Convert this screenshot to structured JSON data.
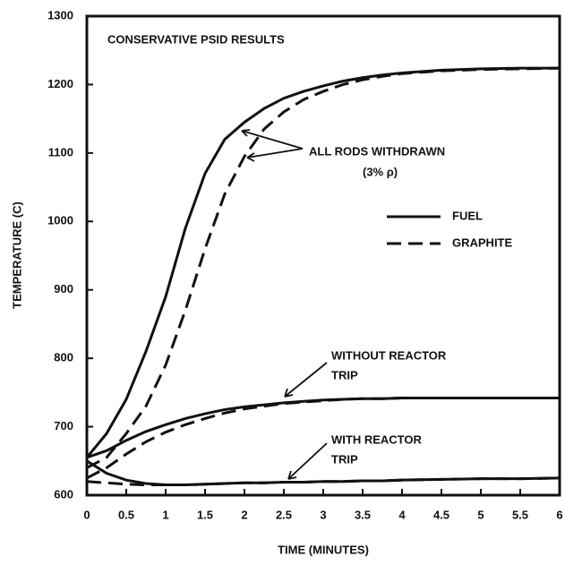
{
  "chart_data": {
    "type": "line",
    "title": "CONSERVATIVE PSID RESULTS",
    "x_label": "TIME (MINUTES)",
    "y_label": "TEMPERATURE (C)",
    "annotations": [
      "ALL RODS WITHDRAWN",
      "(3% ρ)",
      "WITHOUT REACTOR",
      "TRIP",
      "WITH REACTOR",
      "TRIP"
    ],
    "x": [
      0,
      0.25,
      0.5,
      0.75,
      1,
      1.25,
      1.5,
      1.75,
      2,
      2.25,
      2.5,
      2.75,
      3,
      3.25,
      3.5,
      3.75,
      4,
      4.5,
      5,
      5.5,
      6
    ],
    "series": [
      {
        "name": "FUEL",
        "color": "#111111",
        "dashed": false,
        "values": [
          655,
          690,
          740,
          810,
          890,
          990,
          1070,
          1120,
          1145,
          1165,
          1180,
          1190,
          1198,
          1205,
          1210,
          1214,
          1217,
          1221,
          1223,
          1224,
          1224
        ]
      },
      {
        "name": "GRAPHITE",
        "color": "#111111",
        "dashed": true,
        "values": [
          640,
          655,
          690,
          730,
          790,
          870,
          960,
          1040,
          1095,
          1135,
          1160,
          1178,
          1190,
          1200,
          1207,
          1212,
          1216,
          1220,
          1222,
          1223,
          1224
        ]
      },
      {
        "name": "FUEL",
        "color": "#111111",
        "dashed": false,
        "values": [
          655,
          665,
          680,
          693,
          703,
          712,
          719,
          725,
          729,
          732,
          735,
          737,
          739,
          740,
          741,
          741,
          742,
          742,
          742,
          742,
          742
        ]
      },
      {
        "name": "GRAPHITE",
        "color": "#111111",
        "dashed": true,
        "values": [
          625,
          640,
          660,
          678,
          692,
          703,
          712,
          720,
          726,
          730,
          734,
          736,
          738,
          740,
          741,
          741,
          742,
          742,
          742,
          742,
          742
        ]
      },
      {
        "name": "FUEL",
        "color": "#111111",
        "dashed": false,
        "values": [
          650,
          632,
          622,
          617,
          615,
          615,
          616,
          617,
          618,
          618,
          619,
          619,
          620,
          620,
          621,
          621,
          622,
          623,
          624,
          624,
          625
        ]
      },
      {
        "name": "GRAPHITE",
        "color": "#111111",
        "dashed": true,
        "values": [
          620,
          618,
          616,
          615,
          615,
          615,
          616,
          617,
          618,
          618,
          619,
          619,
          620,
          620,
          621,
          621,
          622,
          623,
          624,
          624,
          625
        ]
      }
    ],
    "xlim": [
      0,
      6
    ],
    "xticks": [
      0,
      0.5,
      1,
      1.5,
      2,
      2.5,
      3,
      3.5,
      4,
      4.5,
      5,
      5.5,
      6
    ],
    "ylim": [
      600,
      1300
    ],
    "yticks": [
      600,
      700,
      800,
      900,
      1000,
      1100,
      1200,
      1300
    ],
    "grid": false
  }
}
